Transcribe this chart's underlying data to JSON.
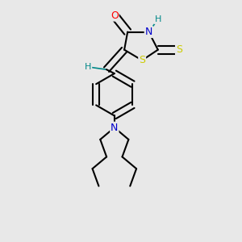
{
  "bg_color": "#e8e8e8",
  "fig_size": [
    3.0,
    3.0
  ],
  "dpi": 100,
  "atom_colors": {
    "C": "#000000",
    "N": "#0000cc",
    "O": "#ff0000",
    "S": "#cccc00",
    "H": "#008888"
  },
  "bond_color": "#000000",
  "bond_width": 1.5,
  "font_size_atoms": 9,
  "font_size_h": 8,
  "xlim": [
    -1.6,
    1.6
  ],
  "ylim": [
    -2.2,
    1.4
  ]
}
